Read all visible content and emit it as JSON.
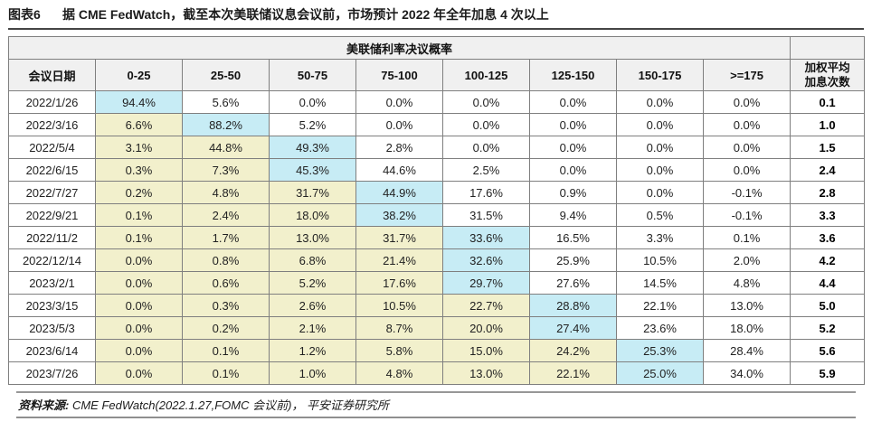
{
  "figure": {
    "label": "图表6",
    "title": "据 CME FedWatch，截至本次美联储议息会议前，市场预计 2022 年全年加息 4 次以上"
  },
  "chart_data": {
    "type": "table",
    "group_header": "美联储利率决议概率",
    "columns": [
      "会议日期",
      "0-25",
      "25-50",
      "50-75",
      "75-100",
      "100-125",
      "125-150",
      "150-175",
      ">=175"
    ],
    "avg_header": "加权平均\n加息次数",
    "rows": [
      {
        "date": "2022/1/26",
        "values": [
          "94.4%",
          "5.6%",
          "0.0%",
          "0.0%",
          "0.0%",
          "0.0%",
          "0.0%",
          "0.0%"
        ],
        "highlight": [
          "c",
          "w",
          "w",
          "w",
          "w",
          "w",
          "w",
          "w"
        ],
        "avg": "0.1"
      },
      {
        "date": "2022/3/16",
        "values": [
          "6.6%",
          "88.2%",
          "5.2%",
          "0.0%",
          "0.0%",
          "0.0%",
          "0.0%",
          "0.0%"
        ],
        "highlight": [
          "y",
          "c",
          "w",
          "w",
          "w",
          "w",
          "w",
          "w"
        ],
        "avg": "1.0"
      },
      {
        "date": "2022/5/4",
        "values": [
          "3.1%",
          "44.8%",
          "49.3%",
          "2.8%",
          "0.0%",
          "0.0%",
          "0.0%",
          "0.0%"
        ],
        "highlight": [
          "y",
          "y",
          "c",
          "w",
          "w",
          "w",
          "w",
          "w"
        ],
        "avg": "1.5"
      },
      {
        "date": "2022/6/15",
        "values": [
          "0.3%",
          "7.3%",
          "45.3%",
          "44.6%",
          "2.5%",
          "0.0%",
          "0.0%",
          "0.0%"
        ],
        "highlight": [
          "y",
          "y",
          "c",
          "w",
          "w",
          "w",
          "w",
          "w"
        ],
        "avg": "2.4"
      },
      {
        "date": "2022/7/27",
        "values": [
          "0.2%",
          "4.8%",
          "31.7%",
          "44.9%",
          "17.6%",
          "0.9%",
          "0.0%",
          "-0.1%"
        ],
        "highlight": [
          "y",
          "y",
          "y",
          "c",
          "w",
          "w",
          "w",
          "w"
        ],
        "avg": "2.8"
      },
      {
        "date": "2022/9/21",
        "values": [
          "0.1%",
          "2.4%",
          "18.0%",
          "38.2%",
          "31.5%",
          "9.4%",
          "0.5%",
          "-0.1%"
        ],
        "highlight": [
          "y",
          "y",
          "y",
          "c",
          "w",
          "w",
          "w",
          "w"
        ],
        "avg": "3.3"
      },
      {
        "date": "2022/11/2",
        "values": [
          "0.1%",
          "1.7%",
          "13.0%",
          "31.7%",
          "33.6%",
          "16.5%",
          "3.3%",
          "0.1%"
        ],
        "highlight": [
          "y",
          "y",
          "y",
          "y",
          "c",
          "w",
          "w",
          "w"
        ],
        "avg": "3.6"
      },
      {
        "date": "2022/12/14",
        "values": [
          "0.0%",
          "0.8%",
          "6.8%",
          "21.4%",
          "32.6%",
          "25.9%",
          "10.5%",
          "2.0%"
        ],
        "highlight": [
          "y",
          "y",
          "y",
          "y",
          "c",
          "w",
          "w",
          "w"
        ],
        "avg": "4.2"
      },
      {
        "date": "2023/2/1",
        "values": [
          "0.0%",
          "0.6%",
          "5.2%",
          "17.6%",
          "29.7%",
          "27.6%",
          "14.5%",
          "4.8%"
        ],
        "highlight": [
          "y",
          "y",
          "y",
          "y",
          "c",
          "w",
          "w",
          "w"
        ],
        "avg": "4.4"
      },
      {
        "date": "2023/3/15",
        "values": [
          "0.0%",
          "0.3%",
          "2.6%",
          "10.5%",
          "22.7%",
          "28.8%",
          "22.1%",
          "13.0%"
        ],
        "highlight": [
          "y",
          "y",
          "y",
          "y",
          "y",
          "c",
          "w",
          "w"
        ],
        "avg": "5.0"
      },
      {
        "date": "2023/5/3",
        "values": [
          "0.0%",
          "0.2%",
          "2.1%",
          "8.7%",
          "20.0%",
          "27.4%",
          "23.6%",
          "18.0%"
        ],
        "highlight": [
          "y",
          "y",
          "y",
          "y",
          "y",
          "c",
          "w",
          "w"
        ],
        "avg": "5.2"
      },
      {
        "date": "2023/6/14",
        "values": [
          "0.0%",
          "0.1%",
          "1.2%",
          "5.8%",
          "15.0%",
          "24.2%",
          "25.3%",
          "28.4%"
        ],
        "highlight": [
          "y",
          "y",
          "y",
          "y",
          "y",
          "y",
          "c",
          "w"
        ],
        "avg": "5.6"
      },
      {
        "date": "2023/7/26",
        "values": [
          "0.0%",
          "0.1%",
          "1.0%",
          "4.8%",
          "13.0%",
          "22.1%",
          "25.0%",
          "34.0%"
        ],
        "highlight": [
          "y",
          "y",
          "y",
          "y",
          "y",
          "y",
          "c",
          "w"
        ],
        "avg": "5.9"
      }
    ]
  },
  "source": {
    "label": "资料来源:",
    "text": " CME FedWatch(2022.1.27,FOMC 会议前)， 平安证券研究所"
  },
  "colors": {
    "c": "#c7ecf5",
    "y": "#f2f0cc",
    "w": "#ffffff",
    "header_bg": "#f0f0f0",
    "border": "#7f7f7f"
  }
}
